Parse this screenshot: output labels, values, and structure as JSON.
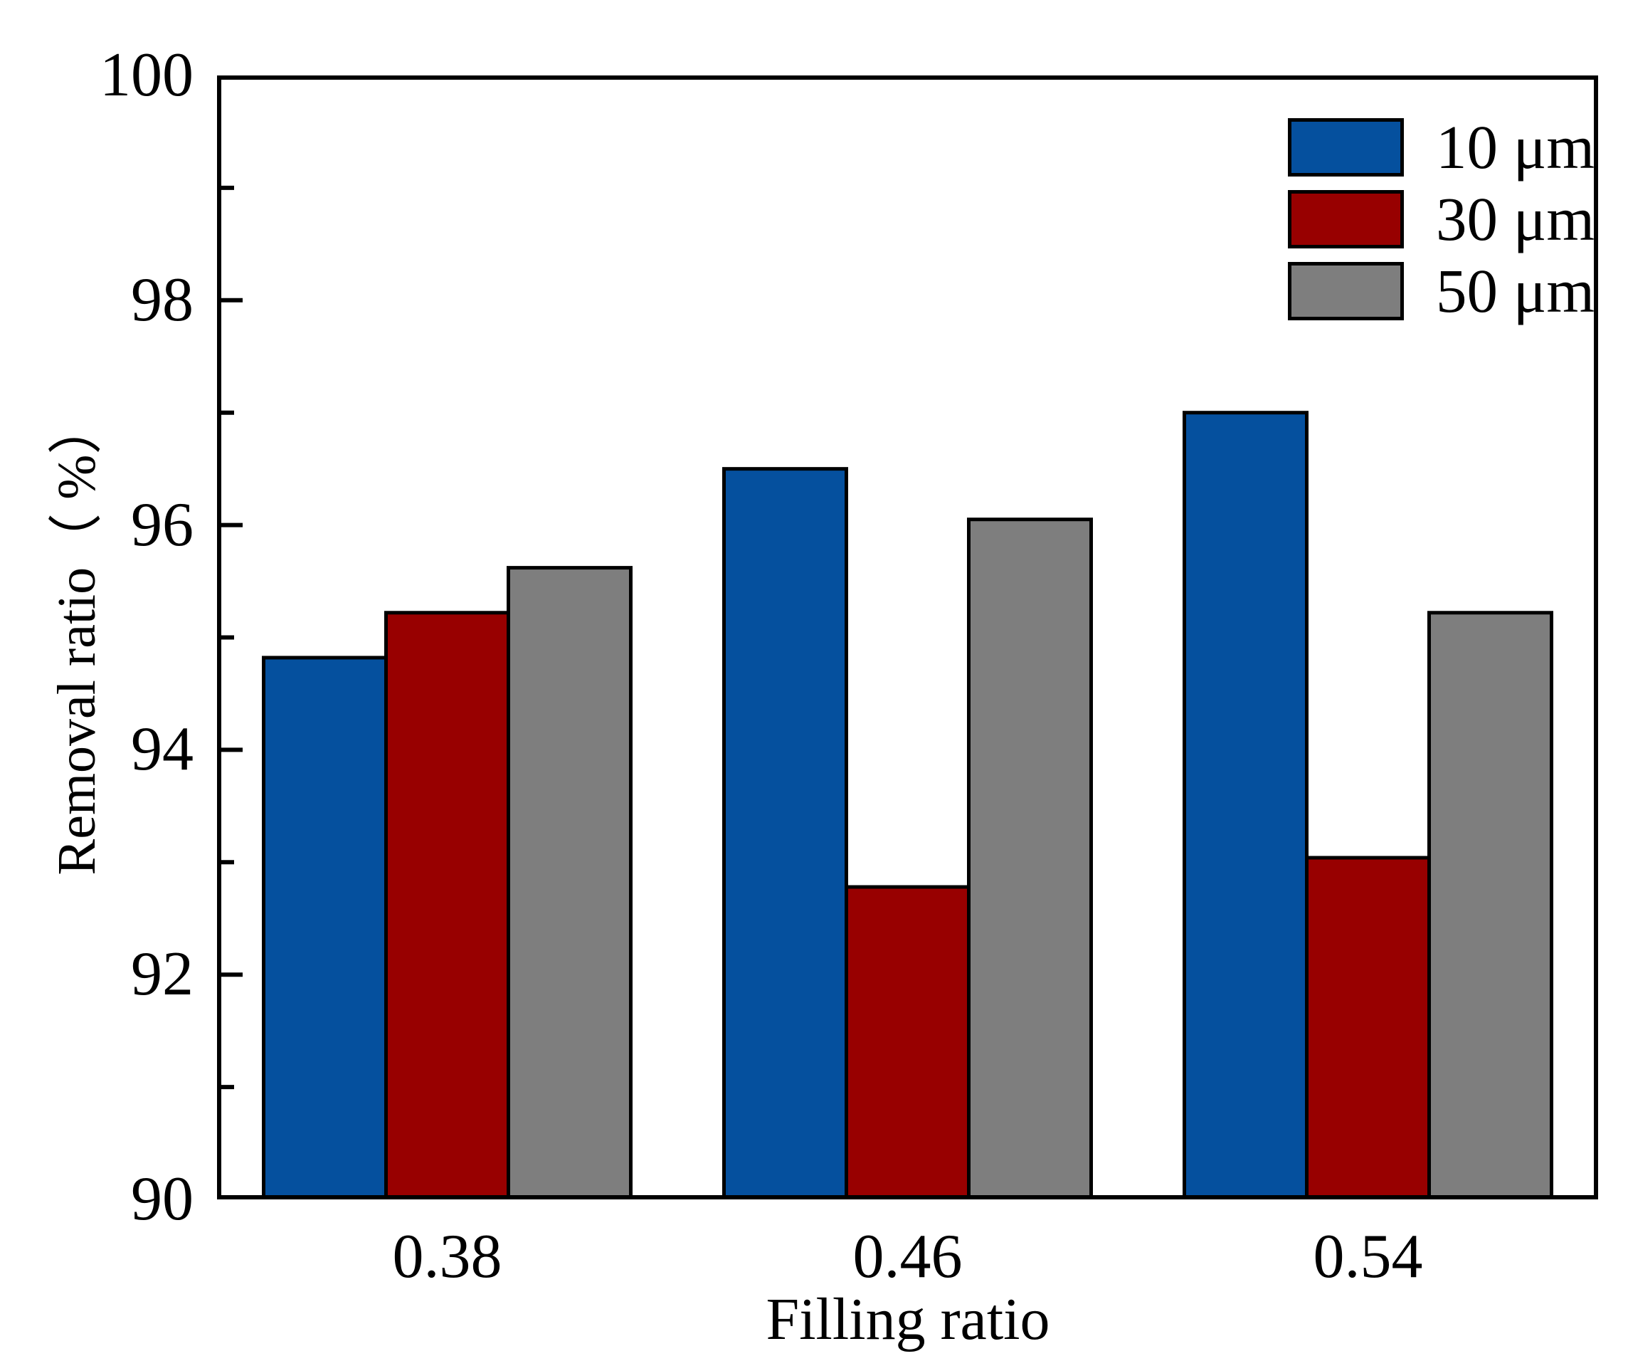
{
  "figure": {
    "background": "#ffffff",
    "frame_color": "#000000"
  },
  "chart_data": {
    "type": "bar",
    "title": "",
    "xlabel": "Filling ratio",
    "ylabel": "Removal ratio（ %）",
    "categories": [
      "0.38",
      "0.46",
      "0.54"
    ],
    "series": [
      {
        "name": "10 μm",
        "color": "#05509E",
        "values": [
          94.82,
          96.5,
          97.0
        ]
      },
      {
        "name": "30 μm",
        "color": "#980000",
        "values": [
          95.22,
          92.78,
          93.04
        ]
      },
      {
        "name": "50 μm",
        "color": "#7E7E7E",
        "values": [
          95.62,
          96.05,
          95.22
        ]
      }
    ],
    "ylim": [
      90,
      100
    ],
    "yticks_major": [
      100,
      98,
      96,
      94,
      92,
      90
    ],
    "yticks_minor": [
      99,
      97,
      95,
      93,
      91
    ],
    "bar_edge_color": "#000000",
    "legend_position": "top-right",
    "grid": false
  }
}
